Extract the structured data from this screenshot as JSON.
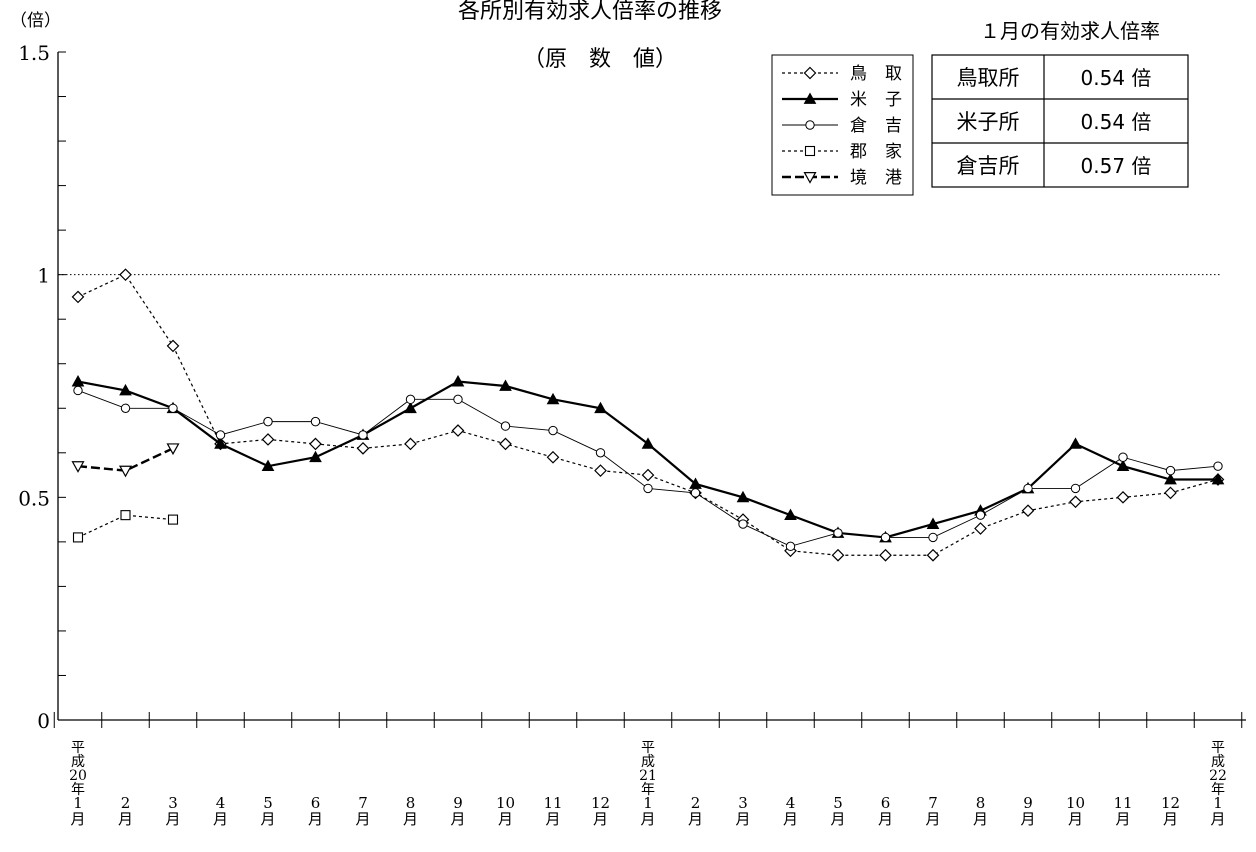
{
  "chart_data": {
    "type": "line",
    "title": "各所別有効求人倍率の推移",
    "subtitle": "（原　数　値）",
    "y_unit": "（倍）",
    "ylim": [
      0,
      1.5
    ],
    "y_ticks": [
      "0",
      "0.5",
      "1",
      "1.5"
    ],
    "reference_line": 1,
    "x_ticks": [
      {
        "era": "平成20年",
        "month": "1月"
      },
      {
        "era": "",
        "month": "2月"
      },
      {
        "era": "",
        "month": "3月"
      },
      {
        "era": "",
        "month": "4月"
      },
      {
        "era": "",
        "month": "5月"
      },
      {
        "era": "",
        "month": "6月"
      },
      {
        "era": "",
        "month": "7月"
      },
      {
        "era": "",
        "month": "8月"
      },
      {
        "era": "",
        "month": "9月"
      },
      {
        "era": "",
        "month": "10月"
      },
      {
        "era": "",
        "month": "11月"
      },
      {
        "era": "",
        "month": "12月"
      },
      {
        "era": "平成21年",
        "month": "1月"
      },
      {
        "era": "",
        "month": "2月"
      },
      {
        "era": "",
        "month": "3月"
      },
      {
        "era": "",
        "month": "4月"
      },
      {
        "era": "",
        "month": "5月"
      },
      {
        "era": "",
        "month": "6月"
      },
      {
        "era": "",
        "month": "7月"
      },
      {
        "era": "",
        "month": "8月"
      },
      {
        "era": "",
        "month": "9月"
      },
      {
        "era": "",
        "month": "10月"
      },
      {
        "era": "",
        "month": "11月"
      },
      {
        "era": "",
        "month": "12月"
      },
      {
        "era": "平成22年",
        "month": "1月"
      }
    ],
    "series": [
      {
        "name": "鳥　取",
        "marker": "diamond",
        "line": "dotted",
        "values": [
          0.95,
          1.0,
          0.84,
          0.62,
          0.63,
          0.62,
          0.61,
          0.62,
          0.65,
          0.62,
          0.59,
          0.56,
          0.55,
          0.51,
          0.45,
          0.38,
          0.37,
          0.37,
          0.37,
          0.43,
          0.47,
          0.49,
          0.5,
          0.51,
          0.54
        ]
      },
      {
        "name": "米　子",
        "marker": "triangle-up",
        "line": "solid-bold",
        "values": [
          0.76,
          0.74,
          0.7,
          0.62,
          0.57,
          0.59,
          0.64,
          0.7,
          0.76,
          0.75,
          0.72,
          0.7,
          0.62,
          0.53,
          0.5,
          0.46,
          0.42,
          0.41,
          0.44,
          0.47,
          0.52,
          0.62,
          0.57,
          0.54,
          0.54
        ]
      },
      {
        "name": "倉　吉",
        "marker": "circle",
        "line": "solid-thin",
        "values": [
          0.74,
          0.7,
          0.7,
          0.64,
          0.67,
          0.67,
          0.64,
          0.72,
          0.72,
          0.66,
          0.65,
          0.6,
          0.52,
          0.51,
          0.44,
          0.39,
          0.42,
          0.41,
          0.41,
          0.46,
          0.52,
          0.52,
          0.59,
          0.56,
          0.57
        ]
      },
      {
        "name": "郡　家",
        "marker": "square",
        "line": "dotted",
        "values": [
          0.41,
          0.46,
          0.45,
          null,
          null,
          null,
          null,
          null,
          null,
          null,
          null,
          null,
          null,
          null,
          null,
          null,
          null,
          null,
          null,
          null,
          null,
          null,
          null,
          null,
          null
        ]
      },
      {
        "name": "境　港",
        "marker": "triangle-down",
        "line": "dashed-bold",
        "values": [
          0.57,
          0.56,
          0.61,
          null,
          null,
          null,
          null,
          null,
          null,
          null,
          null,
          null,
          null,
          null,
          null,
          null,
          null,
          null,
          null,
          null,
          null,
          null,
          null,
          null,
          null
        ]
      }
    ],
    "legend_position": "top-right",
    "grid": false
  },
  "summary_table": {
    "title": "１月の有効求人倍率",
    "rows": [
      {
        "office": "鳥取所",
        "value": "0.54 倍"
      },
      {
        "office": "米子所",
        "value": "0.54 倍"
      },
      {
        "office": "倉吉所",
        "value": "0.57 倍"
      }
    ]
  }
}
